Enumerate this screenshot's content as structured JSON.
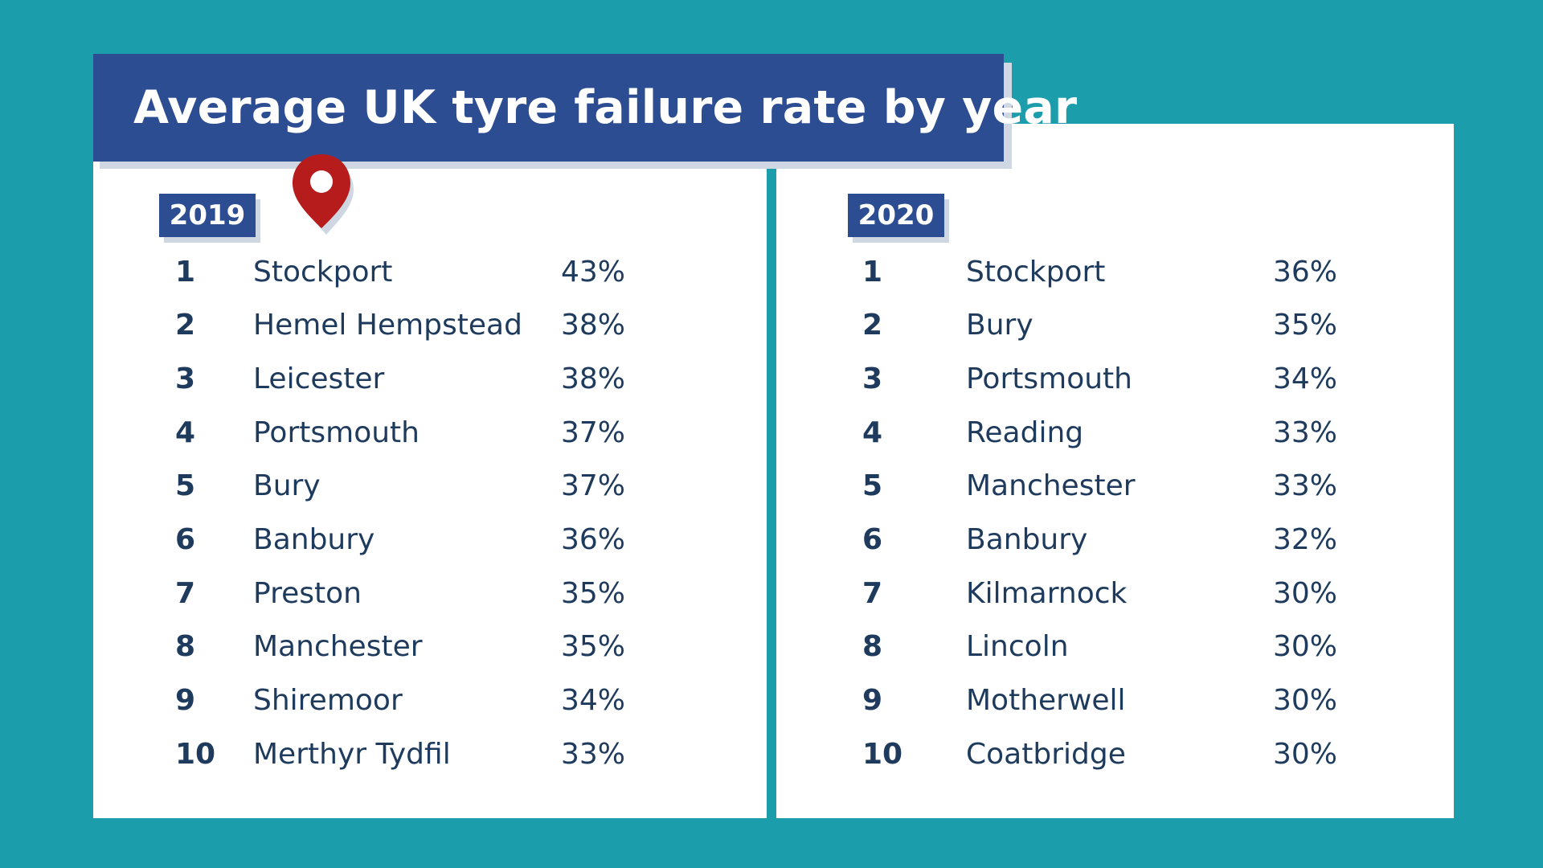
{
  "title": "Average UK tyre failure rate by year",
  "colors": {
    "background": "#1c9dab",
    "banner": "#2d4d93",
    "pin": "#b71c1c",
    "text": "#1e3a5c"
  },
  "pin_icon": "location-pin-icon",
  "chart_data": {
    "type": "table",
    "title": "Average UK tyre failure rate by year",
    "tables": [
      {
        "year": "2019",
        "rows": [
          {
            "rank": "1",
            "city": "Stockport",
            "rate": "43%"
          },
          {
            "rank": "2",
            "city": "Hemel Hempstead",
            "rate": "38%"
          },
          {
            "rank": "3",
            "city": "Leicester",
            "rate": "38%"
          },
          {
            "rank": "4",
            "city": "Portsmouth",
            "rate": "37%"
          },
          {
            "rank": "5",
            "city": "Bury",
            "rate": "37%"
          },
          {
            "rank": "6",
            "city": "Banbury",
            "rate": "36%"
          },
          {
            "rank": "7",
            "city": "Preston",
            "rate": "35%"
          },
          {
            "rank": "8",
            "city": "Manchester",
            "rate": "35%"
          },
          {
            "rank": "9",
            "city": "Shiremoor",
            "rate": "34%"
          },
          {
            "rank": "10",
            "city": "Merthyr Tydfil",
            "rate": "33%"
          }
        ]
      },
      {
        "year": "2020",
        "rows": [
          {
            "rank": "1",
            "city": "Stockport",
            "rate": "36%"
          },
          {
            "rank": "2",
            "city": "Bury",
            "rate": "35%"
          },
          {
            "rank": "3",
            "city": "Portsmouth",
            "rate": "34%"
          },
          {
            "rank": "4",
            "city": "Reading",
            "rate": "33%"
          },
          {
            "rank": "5",
            "city": "Manchester",
            "rate": "33%"
          },
          {
            "rank": "6",
            "city": "Banbury",
            "rate": "32%"
          },
          {
            "rank": "7",
            "city": "Kilmarnock",
            "rate": "30%"
          },
          {
            "rank": "8",
            "city": "Lincoln",
            "rate": "30%"
          },
          {
            "rank": "9",
            "city": "Motherwell",
            "rate": "30%"
          },
          {
            "rank": "10",
            "city": "Coatbridge",
            "rate": "30%"
          }
        ]
      }
    ]
  }
}
